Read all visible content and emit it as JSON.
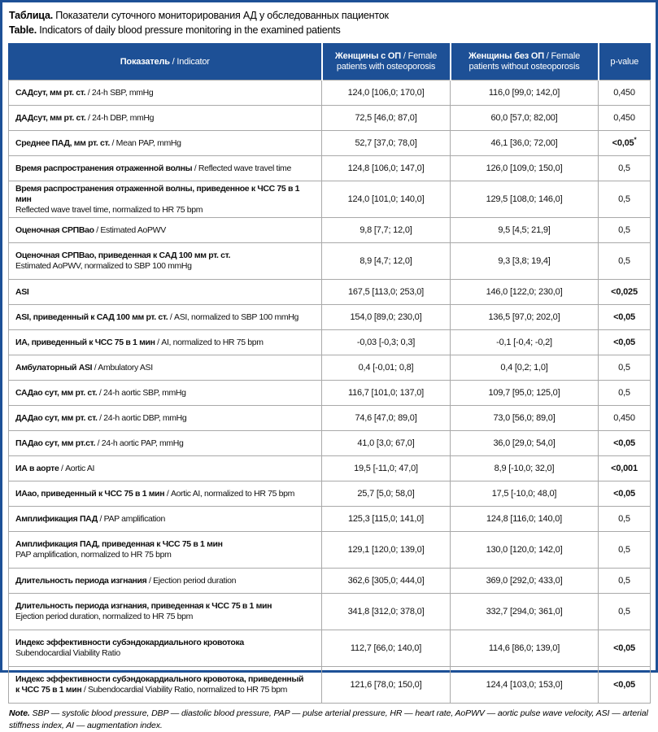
{
  "title": {
    "ru_label": "Таблица.",
    "ru_text": " Показатели суточного мониторирования АД у обследованных пациенток",
    "en_label": "Table.",
    "en_text": " Indicators of daily blood pressure monitoring in the examined patients"
  },
  "colors": {
    "header_bg": "#1d5096",
    "frame": "#1d5096",
    "grid_line": "#a9a9a9",
    "header_text": "#ffffff"
  },
  "table": {
    "header": {
      "indicator": {
        "ru": "Показатель",
        "en": " / Indicator"
      },
      "with_op": {
        "ru": "Женщины с ОП",
        "en": " / Female patients with osteoporosis"
      },
      "without_op": {
        "ru": "Женщины без ОП",
        "en": " / Female patients without osteoporosis"
      },
      "p_value": "p-value"
    },
    "rows": [
      {
        "indicator": [
          {
            "t": "САДсут, мм рт. ст.",
            "b": true
          },
          {
            "t": " / 24-h SBP, mmHg",
            "b": false
          }
        ],
        "with_op": "124,0 [106,0; 170,0]",
        "without_op": "116,0 [99,0; 142,0]",
        "p_value": "0,450",
        "p_bold": false
      },
      {
        "indicator": [
          {
            "t": "ДАДсут, мм рт. ст.",
            "b": true
          },
          {
            "t": " / 24-h DBP, mmHg",
            "b": false
          }
        ],
        "with_op": "72,5 [46,0; 87,0]",
        "without_op": "60,0 [57,0; 82,00]",
        "p_value": "0,450",
        "p_bold": false
      },
      {
        "indicator": [
          {
            "t": "Среднее ПАД, мм рт. ст.",
            "b": true
          },
          {
            "t": " / Mean PAP, mmHg",
            "b": false
          }
        ],
        "with_op": "52,7 [37,0; 78,0]",
        "without_op": "46,1 [36,0; 72,00]",
        "p_value": "<0,05",
        "p_bold": true,
        "p_sup": "*"
      },
      {
        "indicator": [
          {
            "t": "Время распространения отраженной волны",
            "b": true
          },
          {
            "t": " / Reflected wave travel time",
            "b": false
          }
        ],
        "with_op": "124,8 [106,0; 147,0]",
        "without_op": "126,0 [109,0; 150,0]",
        "p_value": "0,5",
        "p_bold": false
      },
      {
        "indicator": [
          {
            "t": "Время распространения отраженной волны, приведенное к ЧСС 75 в 1 мин",
            "b": true
          },
          {
            "t": "Reflected wave travel time, normalized to HR 75 bpm",
            "b": false,
            "nl": true
          }
        ],
        "with_op": "124,0 [101,0; 140,0]",
        "without_op": "129,5 [108,0; 146,0]",
        "p_value": "0,5",
        "p_bold": false
      },
      {
        "indicator": [
          {
            "t": "Оценочная СРПВао",
            "b": true
          },
          {
            "t": " / Estimated AoPWV",
            "b": false
          }
        ],
        "with_op": "9,8 [7,7; 12,0]",
        "without_op": "9,5 [4,5; 21,9]",
        "p_value": "0,5",
        "p_bold": false
      },
      {
        "indicator": [
          {
            "t": "Оценочная СРПВао, приведенная к САД 100 мм рт. ст.",
            "b": true
          },
          {
            "t": "Estimated AoPWV, normalized to SBP 100 mmHg",
            "b": false,
            "nl": true
          }
        ],
        "with_op": "8,9 [4,7; 12,0]",
        "without_op": "9,3 [3,8; 19,4]",
        "p_value": "0,5",
        "p_bold": false
      },
      {
        "indicator": [
          {
            "t": "ASI",
            "b": true
          }
        ],
        "with_op": "167,5 [113,0; 253,0]",
        "without_op": "146,0 [122,0; 230,0]",
        "p_value": "<0,025",
        "p_bold": true
      },
      {
        "indicator": [
          {
            "t": "ASI, приведенный к САД 100 мм рт. ст.",
            "b": true
          },
          {
            "t": " / ASI, normalized to SBP 100 mmHg",
            "b": false
          }
        ],
        "with_op": "154,0 [89,0; 230,0]",
        "without_op": "136,5 [97,0; 202,0]",
        "p_value": "<0,05",
        "p_bold": true
      },
      {
        "indicator": [
          {
            "t": "ИА, приведенный к ЧСС 75 в 1 мин",
            "b": true
          },
          {
            "t": " / AI, normalized to HR 75 bpm",
            "b": false
          }
        ],
        "with_op": "-0,03 [-0,3; 0,3]",
        "without_op": "-0,1 [-0,4; -0,2]",
        "p_value": "<0,05",
        "p_bold": true
      },
      {
        "indicator": [
          {
            "t": "Амбулаторный ASI",
            "b": true
          },
          {
            "t": " / Ambulatory ASI",
            "b": false
          }
        ],
        "with_op": "0,4 [-0,01; 0,8]",
        "without_op": "0,4 [0,2; 1,0]",
        "p_value": "0,5",
        "p_bold": false
      },
      {
        "indicator": [
          {
            "t": "САДао сут, мм рт. ст.",
            "b": true
          },
          {
            "t": " / 24-h aortic SBP, mmHg",
            "b": false
          }
        ],
        "with_op": "116,7 [101,0; 137,0]",
        "without_op": "109,7 [95,0; 125,0]",
        "p_value": "0,5",
        "p_bold": false
      },
      {
        "indicator": [
          {
            "t": "ДАДао сут, мм рт. ст.",
            "b": true
          },
          {
            "t": " / 24-h aortic DBP, mmHg",
            "b": false
          }
        ],
        "with_op": "74,6 [47,0; 89,0]",
        "without_op": "73,0 [56,0; 89,0]",
        "p_value": "0,450",
        "p_bold": false
      },
      {
        "indicator": [
          {
            "t": "ПАДао сут, мм рт.ст.",
            "b": true
          },
          {
            "t": " / 24-h aortic PAP, mmHg",
            "b": false
          }
        ],
        "with_op": "41,0 [3,0; 67,0]",
        "without_op": "36,0 [29,0; 54,0]",
        "p_value": "<0,05",
        "p_bold": true
      },
      {
        "indicator": [
          {
            "t": "ИА в аорте",
            "b": true
          },
          {
            "t": " / Aortic AI",
            "b": false
          }
        ],
        "with_op": "19,5 [-11,0; 47,0]",
        "without_op": "8,9 [-10,0; 32,0]",
        "p_value": "<0,001",
        "p_bold": true
      },
      {
        "indicator": [
          {
            "t": "ИАао, приведенный к ЧСС 75 в 1 мин",
            "b": true
          },
          {
            "t": " / Aortic AI, normalized to HR 75 bpm",
            "b": false
          }
        ],
        "with_op": "25,7 [5,0; 58,0]",
        "without_op": "17,5 [-10,0; 48,0]",
        "p_value": "<0,05",
        "p_bold": true
      },
      {
        "indicator": [
          {
            "t": "Амплификация ПАД",
            "b": true
          },
          {
            "t": " / PAP amplification",
            "b": false
          }
        ],
        "with_op": "125,3 [115,0; 141,0]",
        "without_op": "124,8 [116,0; 140,0]",
        "p_value": "0,5",
        "p_bold": false
      },
      {
        "indicator": [
          {
            "t": "Амплификация ПАД, приведенная к ЧСС 75 в 1 мин",
            "b": true
          },
          {
            "t": "PAP amplification, normalized to HR 75 bpm",
            "b": false,
            "nl": true
          }
        ],
        "with_op": "129,1 [120,0; 139,0]",
        "without_op": "130,0 [120,0; 142,0]",
        "p_value": "0,5",
        "p_bold": false
      },
      {
        "indicator": [
          {
            "t": "Длительность периода изгнания",
            "b": true
          },
          {
            "t": " / Ejection period duration",
            "b": false
          }
        ],
        "with_op": "362,6 [305,0; 444,0]",
        "without_op": "369,0 [292,0; 433,0]",
        "p_value": "0,5",
        "p_bold": false
      },
      {
        "indicator": [
          {
            "t": "Длительность периода изгнания, приведенная к ЧСС 75 в 1 мин",
            "b": true
          },
          {
            "t": "Ejection period duration, normalized to HR 75 bpm",
            "b": false,
            "nl": true
          }
        ],
        "with_op": "341,8 [312,0; 378,0]",
        "without_op": "332,7 [294,0; 361,0]",
        "p_value": "0,5",
        "p_bold": false
      },
      {
        "indicator": [
          {
            "t": "Индекс эффективности субэндокардиального кровотока",
            "b": true
          },
          {
            "t": "Subendocardial Viability Ratio",
            "b": false,
            "nl": true
          }
        ],
        "with_op": "112,7 [66,0; 140,0]",
        "without_op": "114,6 [86,0; 139,0]",
        "p_value": "<0,05",
        "p_bold": true
      },
      {
        "indicator": [
          {
            "t": "Индекс эффективности субэндокардиального кровотока, приведенный",
            "b": true
          },
          {
            "t": "к ЧСС 75 в 1 мин",
            "b": true,
            "nl": true
          },
          {
            "t": " / Subendocardial Viability Ratio, normalized to HR 75 bpm",
            "b": false
          }
        ],
        "with_op": "121,6 [78,0; 150,0]",
        "without_op": "124,4 [103,0; 153,0]",
        "p_value": "<0,05",
        "p_bold": true
      }
    ]
  },
  "note": {
    "label": "Note.",
    "text": " SBP — systolic blood pressure, DBP — diastolic blood pressure, PAP — pulse arterial pressure, HR — heart rate, AoPWV — aortic pulse wave velocity, ASI — arterial stiffness index, AI — augmentation index."
  }
}
